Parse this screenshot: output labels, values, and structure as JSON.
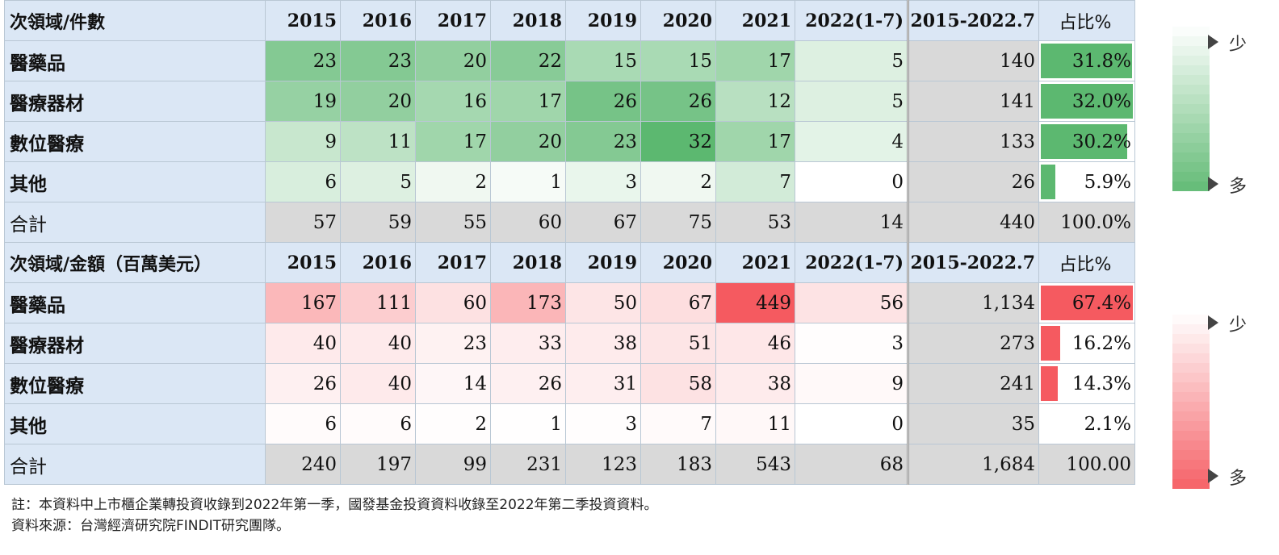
{
  "chart_data": [
    {
      "type": "table",
      "title": "",
      "header": [
        "次領域/件數",
        "2015",
        "2016",
        "2017",
        "2018",
        "2019",
        "2020",
        "2021",
        "2022(1-7)",
        "2015-2022.7",
        "占比%"
      ],
      "rows": [
        {
          "label": "醫藥品",
          "values": [
            23,
            23,
            20,
            22,
            15,
            15,
            17,
            5
          ],
          "total": "140",
          "pct": 31.8,
          "pct_text": "31.8%"
        },
        {
          "label": "醫療器材",
          "values": [
            19,
            20,
            16,
            17,
            26,
            26,
            12,
            5
          ],
          "total": "141",
          "pct": 32.0,
          "pct_text": "32.0%"
        },
        {
          "label": "數位醫療",
          "values": [
            9,
            11,
            17,
            20,
            23,
            32,
            17,
            4
          ],
          "total": "133",
          "pct": 30.2,
          "pct_text": "30.2%"
        },
        {
          "label": "其他",
          "values": [
            6,
            5,
            2,
            1,
            3,
            2,
            7,
            0
          ],
          "total": "26",
          "pct": 5.9,
          "pct_text": "5.9%"
        }
      ],
      "sum_row": {
        "label": "合計",
        "values": [
          "57",
          "59",
          "55",
          "60",
          "67",
          "75",
          "53",
          "14"
        ],
        "total": "440",
        "pct_text": "100.0%"
      },
      "heat_max": 32,
      "color_low": "#ffffff",
      "color_high": "#5cb870"
    },
    {
      "type": "table",
      "title": "",
      "header": [
        "次領域/金額（百萬美元）",
        "2015",
        "2016",
        "2017",
        "2018",
        "2019",
        "2020",
        "2021",
        "2022(1-7)",
        "2015-2022.7",
        "占比%"
      ],
      "rows": [
        {
          "label": "醫藥品",
          "values": [
            167,
            111,
            60,
            173,
            50,
            67,
            449,
            56
          ],
          "total": "1,134",
          "pct": 67.4,
          "pct_text": "67.4%"
        },
        {
          "label": "醫療器材",
          "values": [
            40,
            40,
            23,
            33,
            38,
            51,
            46,
            3
          ],
          "total": "273",
          "pct": 16.2,
          "pct_text": "16.2%"
        },
        {
          "label": "數位醫療",
          "values": [
            26,
            40,
            14,
            26,
            31,
            58,
            38,
            9
          ],
          "total": "241",
          "pct": 14.3,
          "pct_text": "14.3%"
        },
        {
          "label": "其他",
          "values": [
            6,
            6,
            2,
            1,
            3,
            7,
            11,
            0
          ],
          "total": "35",
          "pct": 2.1,
          "pct_text": "2.1%"
        }
      ],
      "sum_row": {
        "label": "合計",
        "values": [
          "240",
          "197",
          "99",
          "231",
          "123",
          "183",
          "543",
          "68"
        ],
        "total": "1,684",
        "pct_text": "100.00"
      },
      "heat_max": 449,
      "color_low": "#ffffff",
      "color_high": "#f55a60"
    }
  ],
  "legends": [
    {
      "low_label": "少",
      "high_label": "多",
      "color_low": "#ffffff",
      "color_high": "#5cb870"
    },
    {
      "low_label": "少",
      "high_label": "多",
      "color_low": "#ffffff",
      "color_high": "#f55a60"
    }
  ],
  "notes": {
    "note": "註：本資料中上市櫃企業轉投資收錄到2022年第一季，國發基金投資資料收錄至2022年第二季投資資料。",
    "source": "資料來源：台灣經濟研究院FINDIT研究團隊。"
  }
}
